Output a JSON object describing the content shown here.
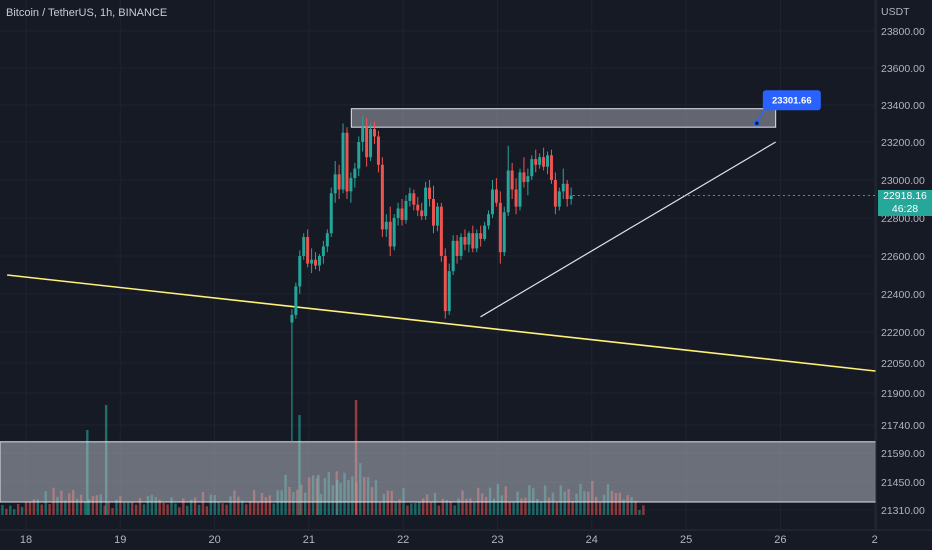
{
  "header": {
    "title": "Bitcoin / TetherUS, 1h, BINANCE"
  },
  "price_badge": {
    "price": "22918.16",
    "countdown": "46:28"
  },
  "colors": {
    "background": "#161a25",
    "grid": "#1f2330",
    "up": "#26a69a",
    "down": "#ef5350",
    "trendline": "#fff176",
    "box": "#c0c4ce",
    "label": "#2962ff"
  },
  "chart_data": {
    "type": "candlestick",
    "symbol": "BTCUSDT",
    "interval": "1h",
    "exchange": "BINANCE",
    "quote_currency": "USDT",
    "ylim": [
      21250,
      23950
    ],
    "y_ticks": [
      "23800.00",
      "23600.00",
      "23400.00",
      "23200.00",
      "23000.00",
      "22800.00",
      "22600.00",
      "22400.00",
      "22200.00",
      "22050.00",
      "21900.00",
      "21740.00",
      "21590.00",
      "21450.00",
      "21310.00"
    ],
    "y_tick_values": [
      23800,
      23600,
      23400,
      23200,
      23000,
      22800,
      22600,
      22400,
      22200,
      22050,
      21900,
      21740,
      21590,
      21450,
      21310
    ],
    "x_ticks": [
      "18",
      "19",
      "20",
      "21",
      "22",
      "23",
      "24",
      "25",
      "26",
      "2"
    ],
    "x_tick_values": [
      0,
      1,
      2,
      3,
      4,
      5,
      6,
      7,
      8,
      9
    ],
    "x_range_days": [
      -0.2,
      9.1
    ],
    "last_price": 22918.16,
    "candle_start_day": 2.82,
    "candle_step_day": 0.0417,
    "candles": [
      [
        22250,
        22320,
        21650,
        22290
      ],
      [
        22290,
        22460,
        22270,
        22440
      ],
      [
        22440,
        22630,
        22400,
        22600
      ],
      [
        22600,
        22720,
        22580,
        22700
      ],
      [
        22700,
        22740,
        22540,
        22560
      ],
      [
        22560,
        22640,
        22510,
        22580
      ],
      [
        22580,
        22620,
        22530,
        22550
      ],
      [
        22550,
        22610,
        22520,
        22600
      ],
      [
        22600,
        22680,
        22560,
        22650
      ],
      [
        22650,
        22740,
        22620,
        22720
      ],
      [
        22720,
        22960,
        22700,
        22930
      ],
      [
        22930,
        23100,
        22880,
        23030
      ],
      [
        23030,
        23080,
        22900,
        22950
      ],
      [
        22950,
        23300,
        22930,
        23250
      ],
      [
        23250,
        23280,
        22900,
        22940
      ],
      [
        22940,
        23040,
        22880,
        23010
      ],
      [
        23010,
        23090,
        22960,
        23060
      ],
      [
        23060,
        23230,
        23020,
        23200
      ],
      [
        23200,
        23340,
        23150,
        23280
      ],
      [
        23280,
        23330,
        23070,
        23120
      ],
      [
        23120,
        23300,
        23100,
        23270
      ],
      [
        23270,
        23310,
        23190,
        23230
      ],
      [
        23230,
        23260,
        23040,
        23080
      ],
      [
        23080,
        23120,
        22700,
        22740
      ],
      [
        22740,
        22820,
        22700,
        22780
      ],
      [
        22780,
        22860,
        22600,
        22650
      ],
      [
        22650,
        22820,
        22630,
        22800
      ],
      [
        22800,
        22880,
        22760,
        22850
      ],
      [
        22850,
        22900,
        22760,
        22790
      ],
      [
        22790,
        22920,
        22770,
        22890
      ],
      [
        22890,
        22960,
        22860,
        22930
      ],
      [
        22930,
        22950,
        22840,
        22870
      ],
      [
        22870,
        22910,
        22810,
        22840
      ],
      [
        22840,
        22880,
        22790,
        22810
      ],
      [
        22810,
        22990,
        22790,
        22960
      ],
      [
        22960,
        23000,
        22860,
        22900
      ],
      [
        22900,
        22970,
        22720,
        22760
      ],
      [
        22760,
        22880,
        22730,
        22860
      ],
      [
        22860,
        22880,
        22570,
        22600
      ],
      [
        22600,
        22640,
        22270,
        22310
      ],
      [
        22310,
        22560,
        22290,
        22520
      ],
      [
        22520,
        22710,
        22500,
        22680
      ],
      [
        22680,
        22710,
        22560,
        22600
      ],
      [
        22600,
        22720,
        22580,
        22700
      ],
      [
        22700,
        22740,
        22630,
        22660
      ],
      [
        22660,
        22730,
        22620,
        22720
      ],
      [
        22720,
        22760,
        22620,
        22640
      ],
      [
        22640,
        22740,
        22620,
        22720
      ],
      [
        22720,
        22760,
        22650,
        22690
      ],
      [
        22690,
        22780,
        22680,
        22760
      ],
      [
        22760,
        22840,
        22740,
        22820
      ],
      [
        22820,
        23000,
        22800,
        22950
      ],
      [
        22950,
        23010,
        22860,
        22880
      ],
      [
        22880,
        22940,
        22560,
        22620
      ],
      [
        22620,
        22860,
        22600,
        22830
      ],
      [
        22830,
        23180,
        22810,
        23050
      ],
      [
        23050,
        23090,
        22900,
        22950
      ],
      [
        22950,
        23010,
        22820,
        22860
      ],
      [
        22860,
        23060,
        22840,
        23040
      ],
      [
        23040,
        23120,
        22960,
        22990
      ],
      [
        22990,
        23060,
        22920,
        23020
      ],
      [
        23020,
        23130,
        23000,
        23110
      ],
      [
        23110,
        23160,
        23040,
        23080
      ],
      [
        23080,
        23140,
        23060,
        23120
      ],
      [
        23120,
        23170,
        23050,
        23070
      ],
      [
        23070,
        23150,
        23030,
        23130
      ],
      [
        23130,
        23160,
        22980,
        23000
      ],
      [
        23000,
        23040,
        22820,
        22860
      ],
      [
        22860,
        22960,
        22840,
        22940
      ],
      [
        22940,
        23060,
        22900,
        22980
      ],
      [
        22980,
        23000,
        22860,
        22900
      ],
      [
        22900,
        22960,
        22870,
        22918.16
      ]
    ],
    "volume_bands": [
      {
        "day": -0.05,
        "value": 4
      },
      {
        "day": 0.55,
        "value": 10
      },
      {
        "day": 0.9,
        "value": 5
      },
      {
        "day": 1.6,
        "value": 6
      },
      {
        "day": 2.6,
        "value": 8
      },
      {
        "day": 2.9,
        "value": 18
      },
      {
        "day": 3.2,
        "value": 12
      },
      {
        "day": 3.55,
        "value": 14
      },
      {
        "day": 3.75,
        "value": 9
      },
      {
        "day": 4.2,
        "value": 6
      },
      {
        "day": 4.65,
        "value": 7
      },
      {
        "day": 4.95,
        "value": 9
      },
      {
        "day": 5.5,
        "value": 8
      },
      {
        "day": 5.9,
        "value": 10
      },
      {
        "day": 6.3,
        "value": 9
      },
      {
        "day": 6.5,
        "value": 5
      }
    ],
    "annotations": {
      "resistance_box": {
        "from_day": 3.45,
        "to_day": 7.95,
        "low": 23280,
        "high": 23380
      },
      "support_box": {
        "low": 21350,
        "high": 21650
      },
      "upper_trendline": {
        "from": [
          -0.2,
          22500
        ],
        "to": [
          9.1,
          22005
        ]
      },
      "rising_trendline": {
        "from": [
          4.82,
          22280
        ],
        "to": [
          7.95,
          23200
        ]
      },
      "price_label": {
        "day": 7.75,
        "price": 23301.66,
        "text": "23301.66"
      }
    }
  }
}
